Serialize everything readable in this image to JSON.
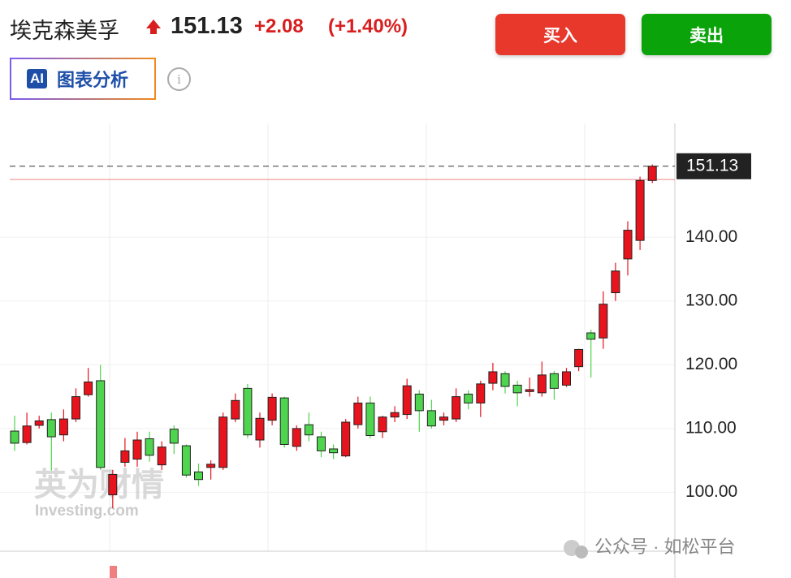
{
  "header": {
    "name": "埃克森美孚",
    "price": 151.13,
    "change": "+2.08",
    "change_pct": "(+1.40%)",
    "buy": "买入",
    "sell": "卖出",
    "ai_badge": "AI",
    "ai_label": "图表分析"
  },
  "watermark": {
    "brand": "英为财情",
    "site": "Investing.com",
    "account": "公众号 · 如松平台"
  },
  "chart_data": {
    "type": "candlestick",
    "open": [
      109.6,
      107.8,
      110.5,
      111.4,
      109,
      111.5,
      115.3,
      117.5,
      99.6,
      104.7,
      105.2,
      108.4,
      104.3,
      109.9,
      107.3,
      103.2,
      103.9,
      103.9,
      111.5,
      116.3,
      108.2,
      111.3,
      114.8,
      107.2,
      110.6,
      108.7,
      106.8,
      105.7,
      110.6,
      114,
      109.5,
      111.8,
      112.2,
      115.4,
      112.8,
      111.3,
      111.5,
      115.4,
      114,
      117.1,
      118.6,
      116.8,
      115.8,
      115.6,
      118.6,
      116.8,
      119.7,
      125,
      124.2,
      131.3,
      136.6,
      139.5,
      148.9
    ],
    "high": [
      112,
      112.5,
      112,
      112.5,
      113,
      116.3,
      119.5,
      120,
      103.5,
      108.5,
      109.5,
      109.5,
      108,
      110.5,
      107.5,
      104.5,
      105,
      112.5,
      115.5,
      117,
      112.5,
      115.5,
      115,
      110.5,
      112.5,
      109.5,
      107.5,
      111.5,
      115,
      115,
      112,
      113.5,
      117.8,
      116,
      114.5,
      112.5,
      116.3,
      116,
      117.5,
      120.3,
      119,
      117.5,
      118,
      120.5,
      119,
      119.5,
      122.5,
      125.5,
      131.5,
      136,
      142.5,
      149.5,
      151.4
    ],
    "low": [
      106.5,
      107.5,
      110,
      103.4,
      108,
      111,
      115,
      103.5,
      97.5,
      104,
      104,
      104.8,
      103.5,
      106,
      102.3,
      101,
      102,
      103.5,
      111,
      108.5,
      107,
      110.5,
      107,
      106.5,
      108,
      105.5,
      105.2,
      105.5,
      110,
      108.5,
      108.5,
      111,
      111.5,
      109.5,
      110,
      110.5,
      111,
      113,
      111.8,
      116,
      115.5,
      113.5,
      115,
      115,
      114.5,
      116.5,
      119,
      118,
      122.5,
      130,
      134,
      138,
      148.5
    ],
    "close": [
      107.7,
      110.4,
      111.2,
      108.7,
      111.5,
      115,
      117.3,
      103.9,
      102.8,
      106.5,
      108.2,
      105.8,
      107.1,
      107.7,
      102.7,
      102,
      104.4,
      111.8,
      114.4,
      109,
      111.6,
      114.9,
      107.5,
      110,
      109,
      106.5,
      106.2,
      111,
      114,
      108.9,
      111.8,
      112.5,
      116.7,
      112.8,
      110.4,
      111.8,
      115,
      114,
      117,
      118.9,
      116.6,
      115.6,
      116.1,
      118.4,
      116.3,
      118.9,
      122.4,
      124,
      129.5,
      134.7,
      141.1,
      148.9,
      151.13
    ],
    "up_color": "#e8141d",
    "down_color": "#4fd44f",
    "ylim": [
      90.76,
      157.85
    ],
    "yticks": [
      {
        "value": 100,
        "label": "100.00"
      },
      {
        "value": 110,
        "label": "110.00"
      },
      {
        "value": 120,
        "label": "120.00"
      },
      {
        "value": 130,
        "label": "130.00"
      },
      {
        "value": 140,
        "label": "140.00"
      }
    ],
    "last_price": 151.13,
    "previous_close": 149.05
  }
}
